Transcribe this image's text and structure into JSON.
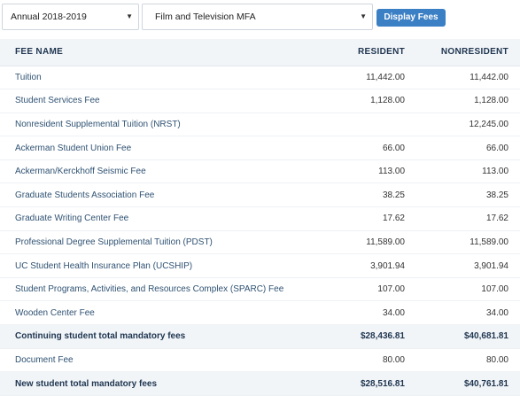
{
  "filters": {
    "year": "Annual 2018-2019",
    "program": "Film and Television MFA",
    "button_label": "Display Fees"
  },
  "table": {
    "headers": [
      "FEE NAME",
      "RESIDENT",
      "NONRESIDENT"
    ],
    "rows": [
      {
        "name": "Tuition",
        "resident": "11,442.00",
        "nonresident": "11,442.00"
      },
      {
        "name": "Student Services Fee",
        "resident": "1,128.00",
        "nonresident": "1,128.00"
      },
      {
        "name": "Nonresident Supplemental Tuition (NRST)",
        "resident": "",
        "nonresident": "12,245.00"
      },
      {
        "name": "Ackerman Student Union Fee",
        "resident": "66.00",
        "nonresident": "66.00"
      },
      {
        "name": "Ackerman/Kerckhoff Seismic Fee",
        "resident": "113.00",
        "nonresident": "113.00"
      },
      {
        "name": "Graduate Students Association Fee",
        "resident": "38.25",
        "nonresident": "38.25"
      },
      {
        "name": "Graduate Writing Center Fee",
        "resident": "17.62",
        "nonresident": "17.62"
      },
      {
        "name": "Professional Degree Supplemental Tuition (PDST)",
        "resident": "11,589.00",
        "nonresident": "11,589.00"
      },
      {
        "name": "UC Student Health Insurance Plan (UCSHIP)",
        "resident": "3,901.94",
        "nonresident": "3,901.94"
      },
      {
        "name": "Student Programs, Activities, and Resources Complex (SPARC) Fee",
        "resident": "107.00",
        "nonresident": "107.00"
      },
      {
        "name": "Wooden Center Fee",
        "resident": "34.00",
        "nonresident": "34.00"
      },
      {
        "name": "Continuing student total mandatory fees",
        "resident": "$28,436.81",
        "nonresident": "$40,681.81",
        "total": true
      },
      {
        "name": "Document Fee",
        "resident": "80.00",
        "nonresident": "80.00"
      },
      {
        "name": "New student total mandatory fees",
        "resident": "$28,516.81",
        "nonresident": "$40,761.81",
        "total": true
      }
    ]
  }
}
